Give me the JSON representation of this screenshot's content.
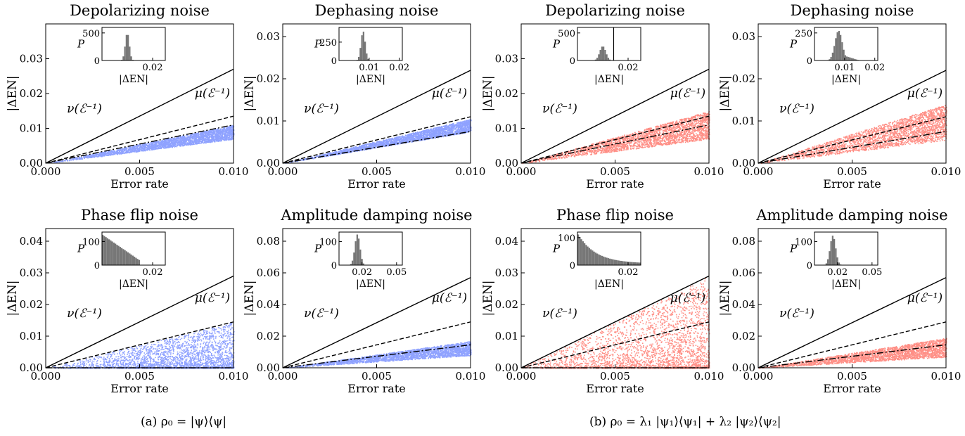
{
  "captions": {
    "a": "(a)  ρ₀ = |ψ⟩⟨ψ|",
    "b": "(b)  ρ₀ = λ₁ |ψ₁⟩⟨ψ₁| + λ₂ |ψ₂⟩⟨ψ₂|"
  },
  "colors": {
    "group_a": "#8fa2ff",
    "group_b": "#ff8f86",
    "hist": "#777777"
  },
  "chart_data": [
    {
      "group": "a",
      "type": "scatter",
      "title": "Depolarizing noise",
      "xlabel": "Error rate",
      "ylabel": "|ΔE_N|",
      "xlim": [
        0,
        0.01
      ],
      "ylim": [
        0,
        0.04
      ],
      "xticks": [
        "0.000",
        "0.005",
        "0.010"
      ],
      "yticks": [
        "0.00",
        "0.01",
        "0.02",
        "0.03"
      ],
      "lines": [
        {
          "name": "ν(ℰ⁻¹)",
          "style": "solid",
          "slope": 2.7
        },
        {
          "name": "μ(ℰ⁻¹)",
          "style": "dashed",
          "slope": 1.35
        },
        {
          "name": "",
          "style": "dashdot",
          "slope": 1.1
        }
      ],
      "scatter": {
        "color": "blue",
        "slope_min": 0.7,
        "slope_max": 1.1
      },
      "inset": {
        "ylabel": "P",
        "xlabel": "|ΔE_N|",
        "xlim": [
          0,
          0.025
        ],
        "ymax": 600,
        "yticks": [
          "0",
          "500"
        ],
        "xticks": [
          "0.02"
        ],
        "peak": 0.01,
        "width": 0.0008,
        "height": 500
      }
    },
    {
      "group": "a",
      "type": "scatter",
      "title": "Dephasing noise",
      "xlabel": "Error rate",
      "ylabel": "|ΔE_N|",
      "xlim": [
        0,
        0.01
      ],
      "ylim": [
        0,
        0.033
      ],
      "xticks": [
        "0.000",
        "0.005",
        "0.010"
      ],
      "yticks": [
        "0.00",
        "0.01",
        "0.02",
        "0.03"
      ],
      "lines": [
        {
          "name": "ν(ℰ⁻¹)",
          "style": "solid",
          "slope": 2.2
        },
        {
          "name": "μ(ℰ⁻¹)",
          "style": "dashed",
          "slope": 1.1
        },
        {
          "name": "",
          "style": "dashdot",
          "slope": 0.75
        }
      ],
      "scatter": {
        "color": "blue",
        "slope_min": 0.75,
        "slope_max": 1.05
      },
      "inset": {
        "ylabel": "P",
        "xlabel": "|ΔE_N|",
        "xlim": [
          0,
          0.021
        ],
        "ymax": 450,
        "yticks": [
          "0",
          "250"
        ],
        "xticks": [
          "0.01",
          "0.02"
        ],
        "peak": 0.008,
        "width": 0.0007,
        "height": 400
      }
    },
    {
      "group": "b",
      "type": "scatter",
      "title": "Depolarizing noise",
      "xlabel": "Error rate",
      "ylabel": "|ΔE_N|",
      "xlim": [
        0,
        0.01
      ],
      "ylim": [
        0,
        0.04
      ],
      "xticks": [
        "0.000",
        "0.005",
        "0.010"
      ],
      "yticks": [
        "0.00",
        "0.01",
        "0.02",
        "0.03"
      ],
      "lines": [
        {
          "name": "ν(ℰ⁻¹)",
          "style": "solid",
          "slope": 2.7
        },
        {
          "name": "μ(ℰ⁻¹)",
          "style": "dashed",
          "slope": 1.35
        },
        {
          "name": "",
          "style": "dashdot",
          "slope": 1.1
        }
      ],
      "scatter": {
        "color": "red",
        "slope_min": 0.7,
        "slope_max": 1.5
      },
      "inset": {
        "ylabel": "P",
        "xlabel": "|ΔE_N|",
        "xlim": [
          0,
          0.025
        ],
        "ymax": 600,
        "yticks": [
          "0",
          "500"
        ],
        "xticks": [
          "0.02"
        ],
        "peak": 0.01,
        "width": 0.0012,
        "height": 260
      },
      "spike_at": 0.0143
    },
    {
      "group": "b",
      "type": "scatter",
      "title": "Dephasing noise",
      "xlabel": "Error rate",
      "ylabel": "|ΔE_N|",
      "xlim": [
        0,
        0.01
      ],
      "ylim": [
        0,
        0.033
      ],
      "xticks": [
        "0.000",
        "0.005",
        "0.010"
      ],
      "yticks": [
        "0.00",
        "0.01",
        "0.02",
        "0.03"
      ],
      "lines": [
        {
          "name": "ν(ℰ⁻¹)",
          "style": "solid",
          "slope": 2.2
        },
        {
          "name": "μ(ℰ⁻¹)",
          "style": "dashed",
          "slope": 1.1
        },
        {
          "name": "",
          "style": "dashdot",
          "slope": 0.75
        }
      ],
      "scatter": {
        "color": "red",
        "slope_min": 0.55,
        "slope_max": 1.4
      },
      "inset": {
        "ylabel": "P",
        "xlabel": "|ΔE_N|",
        "xlim": [
          0,
          0.021
        ],
        "ymax": 300,
        "yticks": [
          "0",
          "250"
        ],
        "xticks": [
          "0.01",
          "0.02"
        ],
        "peak": 0.008,
        "width": 0.0012,
        "height": 270,
        "tail": 0.015
      }
    },
    {
      "group": "a",
      "type": "scatter",
      "title": "Phase flip noise",
      "xlabel": "Error rate",
      "ylabel": "|ΔE_N|",
      "xlim": [
        0,
        0.01
      ],
      "ylim": [
        0,
        0.044
      ],
      "xticks": [
        "0.000",
        "0.005",
        "0.010"
      ],
      "yticks": [
        "0.00",
        "0.01",
        "0.02",
        "0.03",
        "0.04"
      ],
      "lines": [
        {
          "name": "ν(ℰ⁻¹)",
          "style": "solid",
          "slope": 2.9
        },
        {
          "name": "μ(ℰ⁻¹)",
          "style": "dashed",
          "slope": 1.45
        },
        {
          "name": "",
          "style": "dashdot",
          "slope": 0.0
        }
      ],
      "scatter": {
        "color": "blue",
        "slope_min": 0.0,
        "slope_max": 1.45,
        "skew": true
      },
      "inset": {
        "ylabel": "P",
        "xlabel": "|ΔE_N|",
        "xlim": [
          0,
          0.025
        ],
        "ymax": 140,
        "yticks": [
          "0",
          "100"
        ],
        "xticks": [
          "0.02"
        ],
        "decay": "linear",
        "end": 0.015,
        "height": 130
      }
    },
    {
      "group": "a",
      "type": "scatter",
      "title": "Amplitude damping noise",
      "xlabel": "Error rate",
      "ylabel": "|ΔE_N|",
      "xlim": [
        0,
        0.01
      ],
      "ylim": [
        0,
        0.088
      ],
      "xticks": [
        "0.000",
        "0.005",
        "0.010"
      ],
      "yticks": [
        "0.00",
        "0.02",
        "0.04",
        "0.06",
        "0.08"
      ],
      "lines": [
        {
          "name": "ν(ℰ⁻¹)",
          "style": "solid",
          "slope": 5.7
        },
        {
          "name": "μ(ℰ⁻¹)",
          "style": "dashed",
          "slope": 2.9
        },
        {
          "name": "",
          "style": "dashdot",
          "slope": 1.45
        }
      ],
      "scatter": {
        "color": "blue",
        "slope_min": 0.8,
        "slope_max": 1.7
      },
      "inset": {
        "ylabel": "P",
        "xlabel": "|ΔE_N|",
        "xlim": [
          0,
          0.055
        ],
        "ymax": 140,
        "yticks": [
          "0",
          "100"
        ],
        "xticks": [
          "0.02",
          "0.05"
        ],
        "peak": 0.016,
        "width": 0.0022,
        "height": 130
      }
    },
    {
      "group": "b",
      "type": "scatter",
      "title": "Phase flip noise",
      "xlabel": "Error rate",
      "ylabel": "|ΔE_N|",
      "xlim": [
        0,
        0.01
      ],
      "ylim": [
        0,
        0.044
      ],
      "xticks": [
        "0.000",
        "0.005",
        "0.010"
      ],
      "yticks": [
        "0.00",
        "0.01",
        "0.02",
        "0.03",
        "0.04"
      ],
      "lines": [
        {
          "name": "ν(ℰ⁻¹)",
          "style": "solid",
          "slope": 2.9
        },
        {
          "name": "μ(ℰ⁻¹)",
          "style": "dashed",
          "slope": 1.45
        },
        {
          "name": "",
          "style": "dashdot",
          "slope": 0.0
        }
      ],
      "scatter": {
        "color": "red",
        "slope_min": 0.0,
        "slope_max": 2.9,
        "skew": true
      },
      "inset": {
        "ylabel": "P",
        "xlabel": "|ΔE_N|",
        "xlim": [
          0,
          0.025
        ],
        "ymax": 120,
        "yticks": [
          "0",
          "100"
        ],
        "xticks": [
          "0.02"
        ],
        "decay": "exp",
        "end": 0.025,
        "height": 110
      }
    },
    {
      "group": "b",
      "type": "scatter",
      "title": "Amplitude damping noise",
      "xlabel": "Error rate",
      "ylabel": "|ΔE_N|",
      "xlim": [
        0,
        0.01
      ],
      "ylim": [
        0,
        0.088
      ],
      "xticks": [
        "0.000",
        "0.005",
        "0.010"
      ],
      "yticks": [
        "0.00",
        "0.02",
        "0.04",
        "0.06",
        "0.08"
      ],
      "lines": [
        {
          "name": "ν(ℰ⁻¹)",
          "style": "solid",
          "slope": 5.7
        },
        {
          "name": "μ(ℰ⁻¹)",
          "style": "dashed",
          "slope": 2.9
        },
        {
          "name": "",
          "style": "dashdot",
          "slope": 1.45
        }
      ],
      "scatter": {
        "color": "red",
        "slope_min": 0.7,
        "slope_max": 1.9
      },
      "inset": {
        "ylabel": "P",
        "xlabel": "|ΔE_N|",
        "xlim": [
          0,
          0.055
        ],
        "ymax": 140,
        "yticks": [
          "0",
          "100"
        ],
        "xticks": [
          "0.02",
          "0.05"
        ],
        "peak": 0.016,
        "width": 0.0024,
        "height": 125
      }
    }
  ]
}
